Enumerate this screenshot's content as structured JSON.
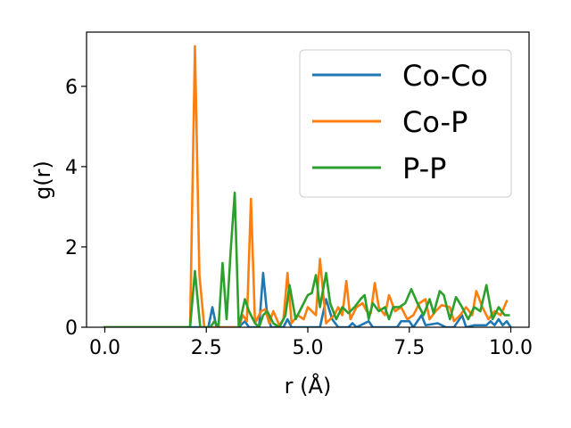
{
  "chart_data": {
    "type": "line",
    "title": "",
    "xlabel": "r (Å)",
    "ylabel": "g(r)",
    "xlim": [
      -0.45,
      10.45
    ],
    "ylim": [
      0,
      7.35
    ],
    "xticks": [
      0.0,
      2.5,
      5.0,
      7.5,
      10.0
    ],
    "xtick_labels": [
      "0.0",
      "2.5",
      "5.0",
      "7.5",
      "10.0"
    ],
    "yticks": [
      0,
      2,
      4,
      6
    ],
    "ytick_labels": [
      "0",
      "2",
      "4",
      "6"
    ],
    "grid": false,
    "legend_position": "top-right",
    "series": [
      {
        "name": "Co-Co",
        "color": "#1f77b4",
        "points": [
          [
            0,
            0
          ],
          [
            2.55,
            0
          ],
          [
            2.65,
            0.5
          ],
          [
            2.75,
            0
          ],
          [
            3.3,
            0
          ],
          [
            3.45,
            0.15
          ],
          [
            3.55,
            0
          ],
          [
            3.8,
            0
          ],
          [
            3.9,
            1.35
          ],
          [
            4.0,
            0.3
          ],
          [
            4.1,
            0
          ],
          [
            4.4,
            0
          ],
          [
            4.5,
            0.2
          ],
          [
            4.6,
            0
          ],
          [
            5.3,
            0
          ],
          [
            5.45,
            0.7
          ],
          [
            5.6,
            0.2
          ],
          [
            5.75,
            0
          ],
          [
            6.0,
            0
          ],
          [
            6.1,
            0.1
          ],
          [
            6.2,
            0
          ],
          [
            6.5,
            0.15
          ],
          [
            6.6,
            0
          ],
          [
            7.2,
            0
          ],
          [
            7.3,
            0.15
          ],
          [
            7.5,
            0.15
          ],
          [
            7.6,
            0
          ],
          [
            7.8,
            0.3
          ],
          [
            7.9,
            0.05
          ],
          [
            8.2,
            0.1
          ],
          [
            8.4,
            0
          ],
          [
            8.6,
            0
          ],
          [
            8.7,
            0.15
          ],
          [
            8.8,
            0.3
          ],
          [
            8.9,
            0
          ],
          [
            9.1,
            0.05
          ],
          [
            9.4,
            0.05
          ],
          [
            9.5,
            0.15
          ],
          [
            9.6,
            0.05
          ],
          [
            9.7,
            0.2
          ],
          [
            9.8,
            0.05
          ],
          [
            9.9,
            0.15
          ],
          [
            10.0,
            0
          ]
        ]
      },
      {
        "name": "Co-P",
        "color": "#ff7f0e",
        "points": [
          [
            0,
            0
          ],
          [
            2.1,
            0
          ],
          [
            2.22,
            7.0
          ],
          [
            2.33,
            1.3
          ],
          [
            2.45,
            0
          ],
          [
            3.3,
            0
          ],
          [
            3.4,
            0.3
          ],
          [
            3.5,
            0.15
          ],
          [
            3.6,
            3.2
          ],
          [
            3.7,
            0.1
          ],
          [
            3.85,
            0.4
          ],
          [
            3.95,
            0.45
          ],
          [
            4.05,
            0.1
          ],
          [
            4.15,
            0.4
          ],
          [
            4.3,
            0.05
          ],
          [
            4.4,
            0.2
          ],
          [
            4.5,
            1.35
          ],
          [
            4.6,
            0.1
          ],
          [
            4.75,
            0.3
          ],
          [
            4.9,
            0.2
          ],
          [
            5.0,
            0.5
          ],
          [
            5.1,
            0.4
          ],
          [
            5.2,
            0.3
          ],
          [
            5.3,
            1.7
          ],
          [
            5.45,
            0.1
          ],
          [
            5.55,
            0.2
          ],
          [
            5.65,
            0.3
          ],
          [
            5.75,
            0.5
          ],
          [
            5.85,
            0.3
          ],
          [
            5.95,
            1.15
          ],
          [
            6.05,
            0.2
          ],
          [
            6.2,
            0.5
          ],
          [
            6.35,
            0.6
          ],
          [
            6.45,
            0.4
          ],
          [
            6.55,
            0.35
          ],
          [
            6.65,
            1.1
          ],
          [
            6.75,
            0.5
          ],
          [
            6.9,
            0.3
          ],
          [
            7.0,
            0.8
          ],
          [
            7.15,
            0.4
          ],
          [
            7.3,
            0.5
          ],
          [
            7.45,
            0.2
          ],
          [
            7.6,
            0.3
          ],
          [
            7.75,
            0.6
          ],
          [
            7.9,
            0.7
          ],
          [
            8.0,
            0.2
          ],
          [
            8.15,
            0.4
          ],
          [
            8.3,
            0.55
          ],
          [
            8.5,
            0.5
          ],
          [
            8.6,
            0.15
          ],
          [
            8.75,
            0.3
          ],
          [
            8.9,
            0.5
          ],
          [
            9.05,
            0.3
          ],
          [
            9.15,
            0.9
          ],
          [
            9.3,
            0.5
          ],
          [
            9.45,
            0.2
          ],
          [
            9.6,
            0.4
          ],
          [
            9.75,
            0.3
          ],
          [
            9.9,
            0.65
          ]
        ]
      },
      {
        "name": "P-P",
        "color": "#2ca02c",
        "points": [
          [
            0,
            0
          ],
          [
            2.1,
            0
          ],
          [
            2.22,
            1.4
          ],
          [
            2.35,
            0
          ],
          [
            2.6,
            0
          ],
          [
            2.7,
            0.15
          ],
          [
            2.8,
            0
          ],
          [
            2.9,
            1.6
          ],
          [
            3.0,
            0.2
          ],
          [
            3.1,
            1.9
          ],
          [
            3.2,
            3.35
          ],
          [
            3.3,
            0
          ],
          [
            3.45,
            0.7
          ],
          [
            3.55,
            0.4
          ],
          [
            3.7,
            0.1
          ],
          [
            3.8,
            0
          ],
          [
            3.9,
            0.3
          ],
          [
            4.0,
            0.4
          ],
          [
            4.15,
            0.1
          ],
          [
            4.3,
            0
          ],
          [
            4.45,
            0.3
          ],
          [
            4.55,
            1.05
          ],
          [
            4.7,
            0.2
          ],
          [
            4.85,
            0.5
          ],
          [
            5.0,
            0.8
          ],
          [
            5.1,
            0.85
          ],
          [
            5.2,
            1.3
          ],
          [
            5.3,
            0.5
          ],
          [
            5.45,
            1.35
          ],
          [
            5.55,
            0.6
          ],
          [
            5.7,
            0.2
          ],
          [
            5.85,
            0.5
          ],
          [
            6.0,
            0.35
          ],
          [
            6.15,
            0.5
          ],
          [
            6.3,
            0.7
          ],
          [
            6.4,
            0.8
          ],
          [
            6.5,
            0.2
          ],
          [
            6.6,
            0.6
          ],
          [
            6.75,
            0.4
          ],
          [
            6.9,
            0.5
          ],
          [
            7.0,
            0.2
          ],
          [
            7.1,
            0.5
          ],
          [
            7.25,
            0.5
          ],
          [
            7.4,
            0.6
          ],
          [
            7.55,
            0.95
          ],
          [
            7.7,
            0.6
          ],
          [
            7.85,
            0.3
          ],
          [
            8.0,
            0.7
          ],
          [
            8.1,
            0.35
          ],
          [
            8.25,
            0.9
          ],
          [
            8.35,
            0.8
          ],
          [
            8.5,
            0.2
          ],
          [
            8.65,
            0.75
          ],
          [
            8.8,
            0.5
          ],
          [
            8.95,
            0.2
          ],
          [
            9.1,
            0.5
          ],
          [
            9.25,
            0.4
          ],
          [
            9.4,
            1.05
          ],
          [
            9.55,
            0.2
          ],
          [
            9.7,
            0.5
          ],
          [
            9.85,
            0.3
          ],
          [
            9.95,
            0.3
          ]
        ]
      }
    ]
  }
}
